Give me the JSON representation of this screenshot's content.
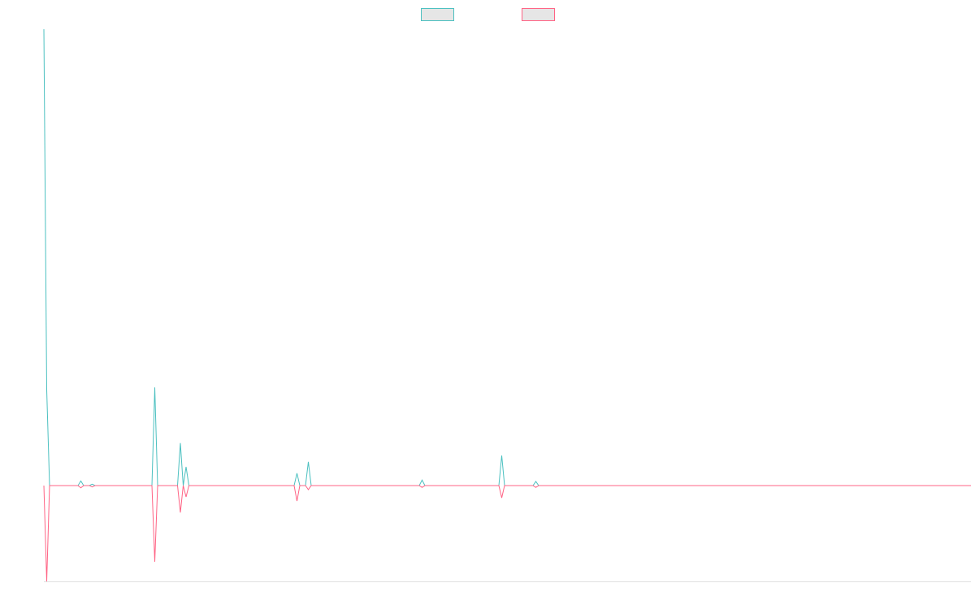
{
  "chart_data": {
    "type": "line",
    "x": [
      0,
      1,
      2,
      12,
      13,
      14,
      16,
      17,
      18,
      38,
      39,
      40,
      47,
      48,
      49,
      50,
      51,
      88,
      89,
      90,
      92,
      93,
      94,
      132,
      133,
      134,
      160,
      161,
      162,
      172,
      173,
      174,
      326
    ],
    "xlim": [
      0,
      326
    ],
    "ylim": [
      -21,
      100
    ],
    "legend": "top",
    "series": [
      {
        "color": "#4bc0c0",
        "values": [
          100,
          21,
          0,
          0,
          1,
          0,
          0,
          0.3,
          0,
          0,
          21.5,
          0,
          0,
          9.3,
          0,
          4.1,
          0,
          0,
          2.7,
          0,
          0,
          5.2,
          0,
          0,
          1.2,
          0,
          0,
          6.6,
          0,
          0,
          0.9,
          0,
          0
        ]
      },
      {
        "color": "#ff6384",
        "values": [
          0,
          -21,
          0,
          0,
          -0.5,
          0,
          0,
          -0.3,
          0,
          0,
          -16.7,
          0,
          0,
          -5.9,
          0,
          -2.5,
          0,
          0,
          -3.4,
          0,
          0,
          -0.9,
          0,
          0,
          -0.4,
          0,
          0,
          -2.7,
          0,
          0,
          -0.4,
          0,
          0
        ]
      }
    ]
  }
}
